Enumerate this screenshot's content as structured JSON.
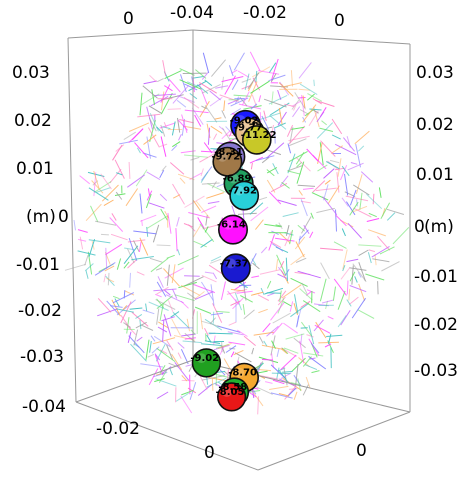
{
  "chart_data": {
    "type": "scatter",
    "title": "",
    "axes": {
      "top_ticks": [
        "0",
        "-0.04",
        "-0.02",
        "0"
      ],
      "bottom_ticks": [
        "-0.02",
        "0",
        "0"
      ],
      "left_ticks": [
        "0.03",
        "0.02",
        "0.01",
        "0",
        "-0.01",
        "-0.02",
        "-0.03",
        "-0.04"
      ],
      "right_ticks": [
        "0.03",
        "0.02",
        "0.01",
        "0",
        "-0.01",
        "-0.02",
        "-0.03"
      ],
      "left_label": "(m)",
      "right_label": "(m)",
      "left_zero": "0",
      "right_zero": "0"
    },
    "points": [
      {
        "label": "-9.02",
        "color": "#1a1aff",
        "depth": 0.2,
        "x": -0.016,
        "y": 0.022
      },
      {
        "label": "-9.77",
        "color": "#e8bf8a",
        "depth": 0.4,
        "x": -0.0145,
        "y": 0.0205
      },
      {
        "label": "-11.22",
        "color": "#c8c828",
        "depth": 0.5,
        "x": -0.012,
        "y": 0.019
      },
      {
        "label": "-8.31",
        "color": "#8878d0",
        "depth": 0.3,
        "x": -0.0215,
        "y": 0.0155
      },
      {
        "label": "-9.72",
        "color": "#a07848",
        "depth": 0.4,
        "x": -0.0225,
        "y": 0.0145
      },
      {
        "label": "-6.89",
        "color": "#20a060",
        "depth": 0.35,
        "x": -0.0185,
        "y": 0.01
      },
      {
        "label": "-7.92",
        "color": "#28d0d8",
        "depth": 0.45,
        "x": -0.0165,
        "y": 0.0075
      },
      {
        "label": "-6.14",
        "color": "#ff10ff",
        "depth": 0.4,
        "x": -0.0205,
        "y": 0.0005
      },
      {
        "label": "-7.37",
        "color": "#1a1ad0",
        "depth": 0.4,
        "x": -0.0195,
        "y": -0.0075
      },
      {
        "label": "-9.02",
        "color": "#20a020",
        "depth": 0.55,
        "x": -0.03,
        "y": -0.027
      },
      {
        "label": "-8.70",
        "color": "#f5a830",
        "depth": 0.5,
        "x": -0.0165,
        "y": -0.03
      },
      {
        "label": "-8.58",
        "color": "#22b030",
        "depth": 0.55,
        "x": -0.02,
        "y": -0.033
      },
      {
        "label": "-8.05",
        "color": "#e81818",
        "depth": 0.6,
        "x": -0.021,
        "y": -0.034
      }
    ],
    "background_segment_colors": [
      "#ff40ff",
      "#c060ff",
      "#40c0c0",
      "#ff80c0",
      "#60e060",
      "#ffb060",
      "#8080ff",
      "#a0a0a0"
    ],
    "grid": false,
    "legend": "none"
  }
}
